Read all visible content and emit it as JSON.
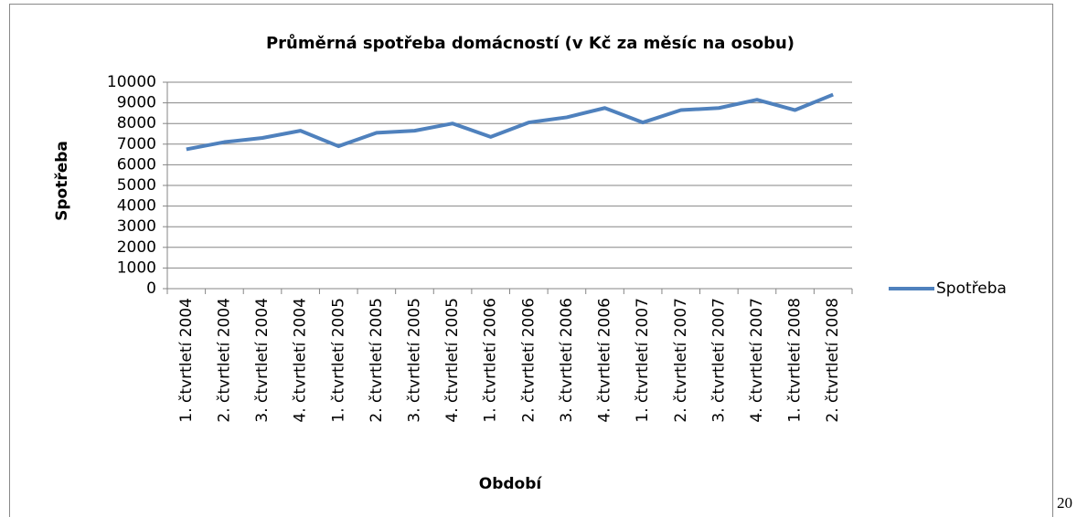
{
  "chart_data": {
    "type": "line",
    "title": "Průměrná spotřeba domácností  (v Kč za měsíc na osobu)",
    "x_label": "Období",
    "y_label": "Spotřeba",
    "categories": [
      "1. čtvrtletí 2004",
      "2. čtvrtletí 2004",
      "3. čtvrtletí 2004",
      "4. čtvrtletí 2004",
      "1. čtvrtletí 2005",
      "2. čtvrtletí 2005",
      "3. čtvrtletí 2005",
      "4. čtvrtletí 2005",
      "1. čtvrtletí 2006",
      "2. čtvrtletí 2006",
      "3. čtvrtletí 2006",
      "4. čtvrtletí 2006",
      "1. čtvrtletí 2007",
      "2. čtvrtletí 2007",
      "3. čtvrtletí 2007",
      "4. čtvrtletí 2007",
      "1. čtvrtletí 2008",
      "2. čtvrtletí 2008"
    ],
    "series": [
      {
        "name": "Spotřeba",
        "color": "#4f81bd",
        "values": [
          6750,
          7100,
          7300,
          7650,
          6900,
          7550,
          7650,
          8000,
          7350,
          8050,
          8300,
          8750,
          8050,
          8650,
          8750,
          9150,
          8650,
          9400
        ]
      }
    ],
    "ylim": [
      0,
      10000
    ],
    "yticks": [
      0,
      1000,
      2000,
      3000,
      4000,
      5000,
      6000,
      7000,
      8000,
      9000,
      10000
    ],
    "grid": true,
    "legend": "right"
  },
  "page_number": "20"
}
